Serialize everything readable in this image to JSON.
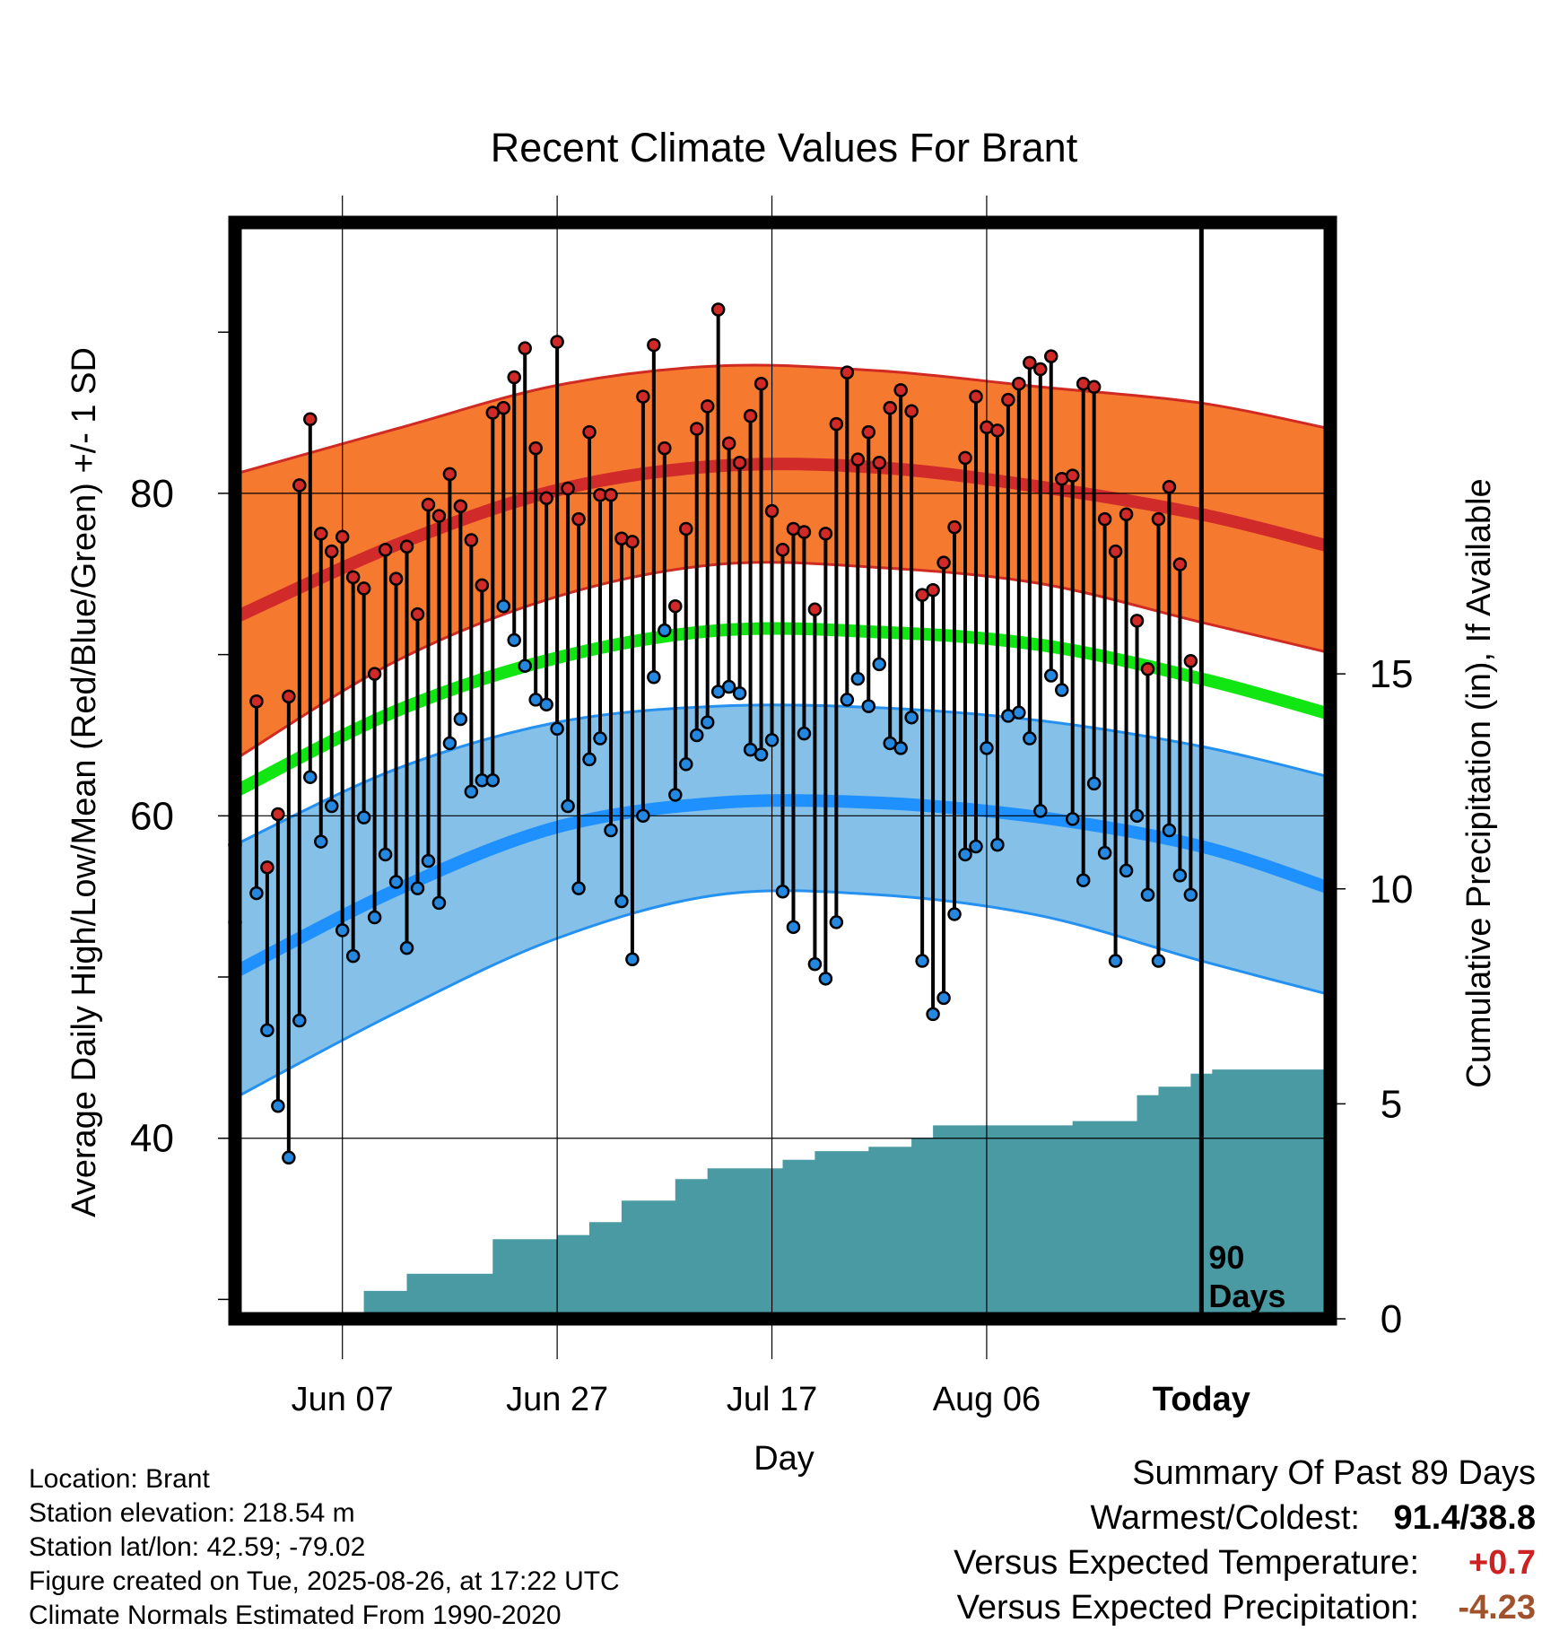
{
  "chart_data": {
    "type": "line",
    "title": "Recent Climate Values For Brant",
    "xlabel": "Day",
    "ylabel": "Average Daily High/Low/Mean (Red/Blue/Green) +/- 1 SD",
    "y2label": "Cumulative Precipitation (in), If Available",
    "x_start": "2025-05-28",
    "x_end": "2025-09-07",
    "today": "2025-08-26",
    "ylim": [
      28.8,
      96.8
    ],
    "y_ticks": [
      40,
      60,
      80
    ],
    "y2lim": [
      0,
      25.5
    ],
    "y2_ticks": [
      0,
      5,
      10,
      15
    ],
    "x_ticks": [
      {
        "date": "2025-06-07",
        "label": "Jun 07"
      },
      {
        "date": "2025-06-27",
        "label": "Jun 27"
      },
      {
        "date": "2025-07-17",
        "label": "Jul 17"
      },
      {
        "date": "2025-08-06",
        "label": "Aug 06"
      },
      {
        "date": "2025-08-26",
        "label": "Today"
      }
    ],
    "period_label": [
      "90",
      "Days"
    ],
    "normals_dates": [
      "2025-05-28",
      "2025-06-12",
      "2025-06-27",
      "2025-07-12",
      "2025-07-27",
      "2025-08-11",
      "2025-08-26",
      "2025-09-07"
    ],
    "normal_high": [
      72.3,
      76.8,
      80.2,
      81.7,
      81.6,
      80.4,
      78.7,
      76.7
    ],
    "normal_high_upper": [
      81.2,
      84.0,
      86.7,
      87.9,
      87.6,
      86.6,
      85.6,
      84.0
    ],
    "normal_high_lower": [
      63.5,
      69.6,
      73.6,
      75.6,
      75.4,
      74.4,
      72.0,
      70.1
    ],
    "normal_mean": [
      61.5,
      66.5,
      69.8,
      71.5,
      71.4,
      70.6,
      68.5,
      66.3
    ],
    "normal_low": [
      50.3,
      55.4,
      59.3,
      60.8,
      60.8,
      59.9,
      58.1,
      55.5
    ],
    "normal_low_upper": [
      58.2,
      62.9,
      65.8,
      66.8,
      66.7,
      65.9,
      64.3,
      62.4
    ],
    "normal_low_lower": [
      42.5,
      47.8,
      52.4,
      55.1,
      55.1,
      53.8,
      51.0,
      48.9
    ],
    "observed": {
      "dates": [
        "2025-05-28",
        "2025-05-30",
        "2025-05-31",
        "2025-06-01",
        "2025-06-02",
        "2025-06-03",
        "2025-06-04",
        "2025-06-05",
        "2025-06-06",
        "2025-06-07",
        "2025-06-08",
        "2025-06-09",
        "2025-06-10",
        "2025-06-11",
        "2025-06-12",
        "2025-06-13",
        "2025-06-14",
        "2025-06-15",
        "2025-06-16",
        "2025-06-17",
        "2025-06-18",
        "2025-06-19",
        "2025-06-20",
        "2025-06-21",
        "2025-06-22",
        "2025-06-23",
        "2025-06-24",
        "2025-06-25",
        "2025-06-26",
        "2025-06-27",
        "2025-06-28",
        "2025-06-29",
        "2025-06-30",
        "2025-07-01",
        "2025-07-02",
        "2025-07-03",
        "2025-07-04",
        "2025-07-05",
        "2025-07-06",
        "2025-07-07",
        "2025-07-08",
        "2025-07-09",
        "2025-07-10",
        "2025-07-11",
        "2025-07-12",
        "2025-07-13",
        "2025-07-14",
        "2025-07-15",
        "2025-07-16",
        "2025-07-17",
        "2025-07-18",
        "2025-07-19",
        "2025-07-20",
        "2025-07-21",
        "2025-07-22",
        "2025-07-23",
        "2025-07-24",
        "2025-07-25",
        "2025-07-26",
        "2025-07-27",
        "2025-07-28",
        "2025-07-29",
        "2025-07-30",
        "2025-07-31",
        "2025-08-01",
        "2025-08-02",
        "2025-08-03",
        "2025-08-04",
        "2025-08-05",
        "2025-08-06",
        "2025-08-07",
        "2025-08-08",
        "2025-08-09",
        "2025-08-10",
        "2025-08-11",
        "2025-08-12",
        "2025-08-13",
        "2025-08-14",
        "2025-08-15",
        "2025-08-16",
        "2025-08-17",
        "2025-08-18",
        "2025-08-19",
        "2025-08-20",
        "2025-08-21",
        "2025-08-22",
        "2025-08-23",
        "2025-08-24",
        "2025-08-25"
      ],
      "highs": [
        58.2,
        67.1,
        56.8,
        60.1,
        67.4,
        80.5,
        84.6,
        77.5,
        76.4,
        77.3,
        74.8,
        74.1,
        68.8,
        76.5,
        74.7,
        76.7,
        72.5,
        79.3,
        78.6,
        81.2,
        79.2,
        77.1,
        74.3,
        85.0,
        85.3,
        87.2,
        89.0,
        82.8,
        79.7,
        89.4,
        80.3,
        78.4,
        83.8,
        79.9,
        79.9,
        77.2,
        77.0,
        86.0,
        89.2,
        82.8,
        73.0,
        77.8,
        84.0,
        85.4,
        91.4,
        83.1,
        81.9,
        84.8,
        86.8,
        78.9,
        76.5,
        77.8,
        77.6,
        72.8,
        77.5,
        84.3,
        87.5,
        82.1,
        83.8,
        81.9,
        85.3,
        86.4,
        85.1,
        73.7,
        74.0,
        75.7,
        77.9,
        82.2,
        86.0,
        84.1,
        83.9,
        85.8,
        86.8,
        88.1,
        87.7,
        88.5,
        80.9,
        81.1,
        86.8,
        86.6,
        78.4,
        76.4,
        78.7,
        72.1,
        69.1,
        78.4,
        80.4,
        75.6,
        69.6
      ],
      "lows": [
        53.4,
        55.2,
        46.7,
        42.0,
        38.8,
        47.3,
        62.4,
        58.4,
        60.6,
        52.9,
        51.3,
        59.9,
        53.7,
        57.6,
        55.9,
        51.8,
        55.5,
        57.2,
        54.6,
        64.5,
        66.0,
        61.5,
        62.2,
        62.2,
        73.0,
        70.9,
        69.3,
        67.2,
        66.9,
        65.4,
        60.6,
        55.5,
        63.5,
        64.8,
        59.1,
        54.7,
        51.1,
        60.0,
        68.6,
        71.5,
        61.3,
        63.2,
        65.0,
        65.8,
        67.7,
        68.0,
        67.6,
        64.1,
        63.8,
        64.7,
        55.3,
        53.1,
        65.1,
        50.8,
        49.9,
        53.4,
        67.2,
        68.5,
        66.8,
        69.4,
        64.5,
        64.2,
        66.1,
        51.0,
        47.7,
        48.7,
        53.9,
        57.6,
        58.1,
        64.2,
        58.2,
        66.2,
        66.4,
        64.8,
        60.3,
        68.7,
        67.8,
        59.8,
        56.0,
        62.0,
        57.7,
        51.0,
        56.6,
        60.0,
        55.1,
        51.0,
        59.1,
        56.3,
        55.1
      ]
    },
    "precipitation": {
      "dates": [
        "2025-05-28",
        "2025-06-08",
        "2025-06-09",
        "2025-06-11",
        "2025-06-13",
        "2025-06-16",
        "2025-06-21",
        "2025-06-23",
        "2025-06-27",
        "2025-06-30",
        "2025-07-03",
        "2025-07-08",
        "2025-07-11",
        "2025-07-15",
        "2025-07-18",
        "2025-07-21",
        "2025-07-26",
        "2025-07-30",
        "2025-08-01",
        "2025-08-05",
        "2025-08-07",
        "2025-08-11",
        "2025-08-14",
        "2025-08-18",
        "2025-08-20",
        "2025-08-22",
        "2025-08-25",
        "2025-08-27",
        "2025-09-07"
      ],
      "cumulative": [
        0.0,
        0.0,
        0.65,
        0.65,
        1.05,
        1.05,
        1.85,
        1.85,
        1.95,
        2.25,
        2.75,
        3.25,
        3.5,
        3.5,
        3.7,
        3.9,
        4.0,
        4.2,
        4.5,
        4.5,
        4.5,
        4.5,
        4.6,
        4.6,
        5.2,
        5.4,
        5.7,
        5.8,
        5.8
      ]
    },
    "legend": "none",
    "grid": true,
    "colors": {
      "high_band": "#f57a30",
      "high_line": "#d12a2a",
      "high_band_edge": "#d02a23",
      "mean_line": "#12e612",
      "low_band": "#84c0e7",
      "low_line": "#1f90ff",
      "low_band_edge": "#2491f1",
      "precip_fill": "#4a9aa3",
      "high_point": "#d12828",
      "low_point": "#2487e0"
    }
  },
  "footer": {
    "location": "Location: Brant",
    "elevation": "Station elevation: 218.54 m",
    "latlon": "Station lat/lon: 42.59; -79.02",
    "created": "Figure created on Tue, 2025-08-26, at 17:22 UTC",
    "normals": "Climate Normals Estimated From 1990-2020"
  },
  "summary": {
    "title": "Summary Of Past 89 Days",
    "warmest_coldest_label": "Warmest/Coldest:",
    "warmest_coldest_value": "91.4/38.8",
    "temp_label": "Versus Expected Temperature:",
    "temp_value": "+0.7",
    "precip_label": "Versus Expected Precipitation:",
    "precip_value": "-4.23"
  }
}
